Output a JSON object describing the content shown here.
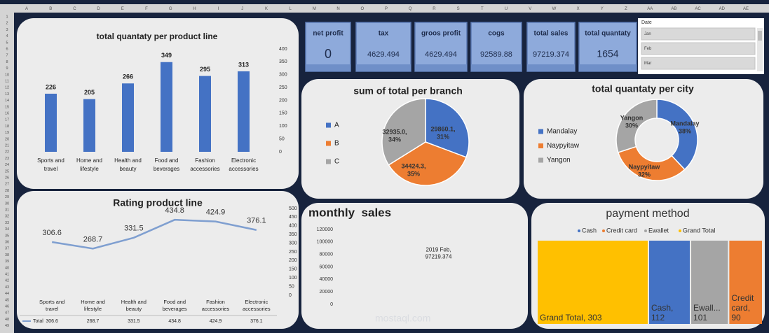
{
  "sheet": {
    "columns": [
      "A",
      "B",
      "C",
      "D",
      "E",
      "F",
      "G",
      "H",
      "I",
      "J",
      "K",
      "L",
      "M",
      "N",
      "O",
      "P",
      "Q",
      "R",
      "S",
      "T",
      "U",
      "V",
      "W",
      "X",
      "Y",
      "Z",
      "AA",
      "AB",
      "AC",
      "AD",
      "AE"
    ],
    "rows": [
      1,
      2,
      3,
      4,
      5,
      6,
      7,
      8,
      9,
      10,
      11,
      12,
      13,
      14,
      15,
      16,
      17,
      18,
      19,
      20,
      21,
      22,
      23,
      24,
      25,
      26,
      27,
      28,
      29,
      30,
      31,
      32,
      33,
      34,
      35,
      36,
      37,
      38,
      39,
      40,
      41,
      42,
      43,
      44,
      45,
      46,
      47,
      48,
      49
    ]
  },
  "kpis": [
    {
      "label": "net profit",
      "value": 0
    },
    {
      "label": "tax",
      "value": 4629.494
    },
    {
      "label": "groos profit",
      "value": 4629.494
    },
    {
      "label": "cogs",
      "value": 92589.88
    },
    {
      "label": "total sales",
      "value": 97219.374
    },
    {
      "label": "total quantaty",
      "value": 1654
    }
  ],
  "slicer": {
    "title": "Date",
    "items": [
      "Jan",
      "Feb",
      "Mar"
    ]
  },
  "watermark": "mostaql.com",
  "chart_data": [
    {
      "type": "bar",
      "title": "total quantaty per product line",
      "categories": [
        "Sports and travel",
        "Home and lifestyle",
        "Health and beauty",
        "Food and beverages",
        "Fashion accessories",
        "Electronic accessories"
      ],
      "values": [
        226,
        205,
        266,
        349,
        295,
        313
      ],
      "color": "#4472c4",
      "ylim": [
        0,
        400
      ],
      "yticks": [
        0,
        50,
        100,
        150,
        200,
        250,
        300,
        350,
        400
      ],
      "axis_side": "right"
    },
    {
      "type": "line",
      "title": "Rating product line",
      "categories": [
        "Sports and travel",
        "Home and lifestyle",
        "Health and beauty",
        "Food and beverages",
        "Fashion accessories",
        "Electronic accessories"
      ],
      "series": [
        {
          "name": "Total",
          "color": "#7f9fd0",
          "values": [
            306.6,
            268.7,
            331.5,
            434.8,
            424.9,
            376.1
          ]
        }
      ],
      "ylim": [
        0,
        500
      ],
      "yticks": [
        0,
        50,
        100,
        150,
        200,
        250,
        300,
        350,
        400,
        450,
        500
      ],
      "axis_side": "right",
      "data_table": true
    },
    {
      "type": "pie",
      "title": "sum of total per branch",
      "categories": [
        "A",
        "B",
        "C"
      ],
      "values": [
        29860.1,
        34424.3,
        32935.0
      ],
      "value_labels": [
        "29860.1,\n31%",
        "34424.3,\n35%",
        "32935.0,\n34%"
      ],
      "colors": [
        "#4472c4",
        "#ed7d31",
        "#a5a5a5"
      ],
      "legend": "left"
    },
    {
      "type": "doughnut",
      "title": "total quantaty per city",
      "categories": [
        "Mandalay",
        "Naypyitaw",
        "Yangon"
      ],
      "values": [
        38,
        32,
        30
      ],
      "value_labels": [
        "Mandalay\n38%",
        "Naypyitaw\n32%",
        "Yangon\n30%"
      ],
      "colors": [
        "#4472c4",
        "#ed7d31",
        "#a5a5a5"
      ],
      "legend": "left"
    },
    {
      "type": "bar",
      "title": "monthly  sales",
      "values": [
        97219.374
      ],
      "value_labels": [
        "2019 Feb,\n97219.374"
      ],
      "ylim": [
        0,
        120000
      ],
      "yticks": [
        0,
        20000,
        40000,
        60000,
        80000,
        100000,
        120000
      ],
      "axis_side": "left"
    },
    {
      "type": "treemap",
      "title": "payment method",
      "legend_order": [
        "Cash",
        "Credit card",
        "Ewallet",
        "Grand Total"
      ],
      "categories": [
        "Grand Total",
        "Cash",
        "Ewallet",
        "Credit card"
      ],
      "values": [
        303,
        112,
        101,
        90
      ],
      "value_labels": [
        "Grand Total, 303",
        "Cash,\n112",
        "Ewall...\n101",
        "Credit\ncard,\n90"
      ],
      "colors": [
        "#ffc000",
        "#4472c4",
        "#a5a5a5",
        "#ed7d31"
      ],
      "legend": "top"
    }
  ]
}
